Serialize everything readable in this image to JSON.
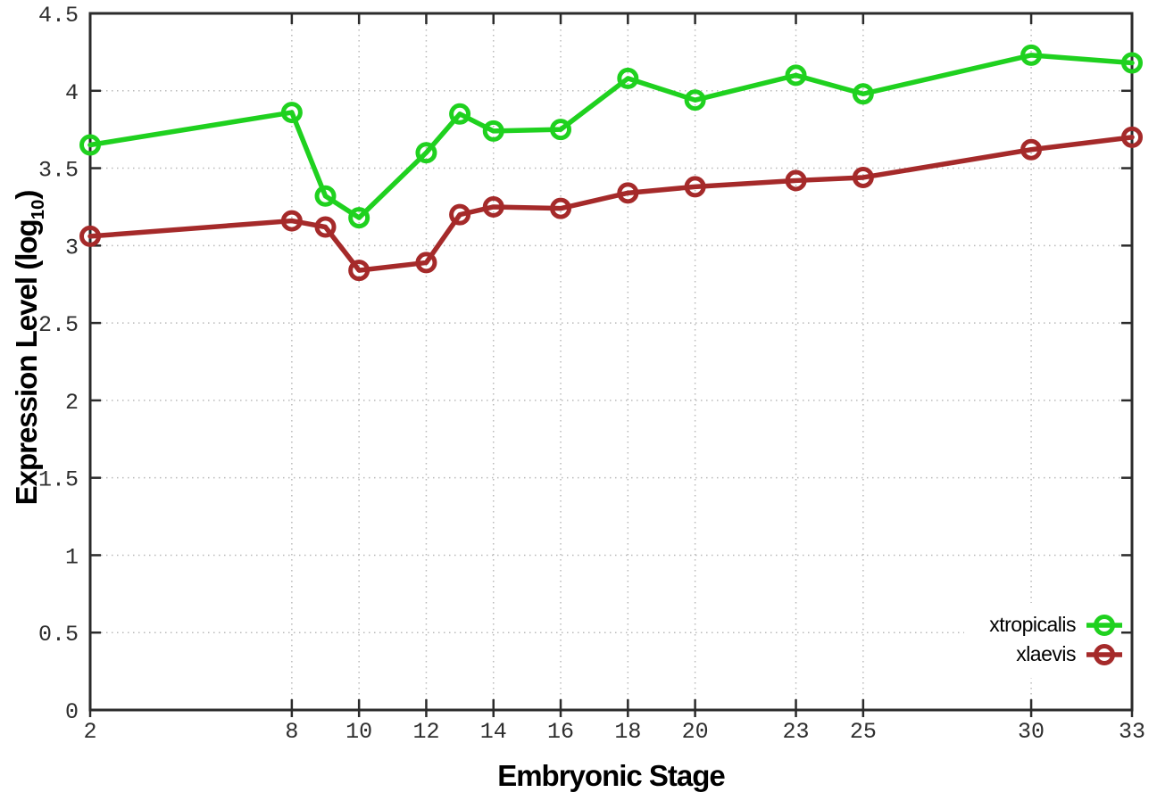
{
  "figure": {
    "background": "#ffffff",
    "axis_color": "#2b2b2b",
    "grid_color": "#b9b9b9",
    "tick_label_color": "#2e2e2e"
  },
  "chart_data": {
    "type": "line",
    "title": "",
    "xlabel": "Embryonic Stage",
    "ylabel": "Expression Level (log10)",
    "ylabel_parts": {
      "prefix": "Expression Level (log",
      "sub": "10",
      "suffix": ")"
    },
    "x": [
      2,
      8,
      9,
      10,
      12,
      13,
      14,
      16,
      18,
      20,
      23,
      25,
      30,
      33
    ],
    "series": [
      {
        "name": "xtropicalis",
        "color": "#1fd11f",
        "values": [
          3.65,
          3.86,
          3.32,
          3.18,
          3.6,
          3.85,
          3.74,
          3.75,
          4.08,
          3.94,
          4.1,
          3.98,
          4.23,
          4.18
        ]
      },
      {
        "name": "xlaevis",
        "color": "#a52a2a",
        "values": [
          3.06,
          3.16,
          3.12,
          2.84,
          2.89,
          3.2,
          3.25,
          3.24,
          3.34,
          3.38,
          3.42,
          3.44,
          3.62,
          3.7
        ]
      }
    ],
    "xticks": [
      2,
      8,
      10,
      12,
      14,
      16,
      18,
      20,
      23,
      25,
      30,
      33
    ],
    "yticks": [
      0,
      0.5,
      1,
      1.5,
      2,
      2.5,
      3,
      3.5,
      4,
      4.5
    ],
    "xlim": [
      2,
      33
    ],
    "ylim": [
      0,
      4.5
    ],
    "grid": true,
    "grid_style": "dotted",
    "marker": "open-circle",
    "legend_position": "bottom-right"
  }
}
